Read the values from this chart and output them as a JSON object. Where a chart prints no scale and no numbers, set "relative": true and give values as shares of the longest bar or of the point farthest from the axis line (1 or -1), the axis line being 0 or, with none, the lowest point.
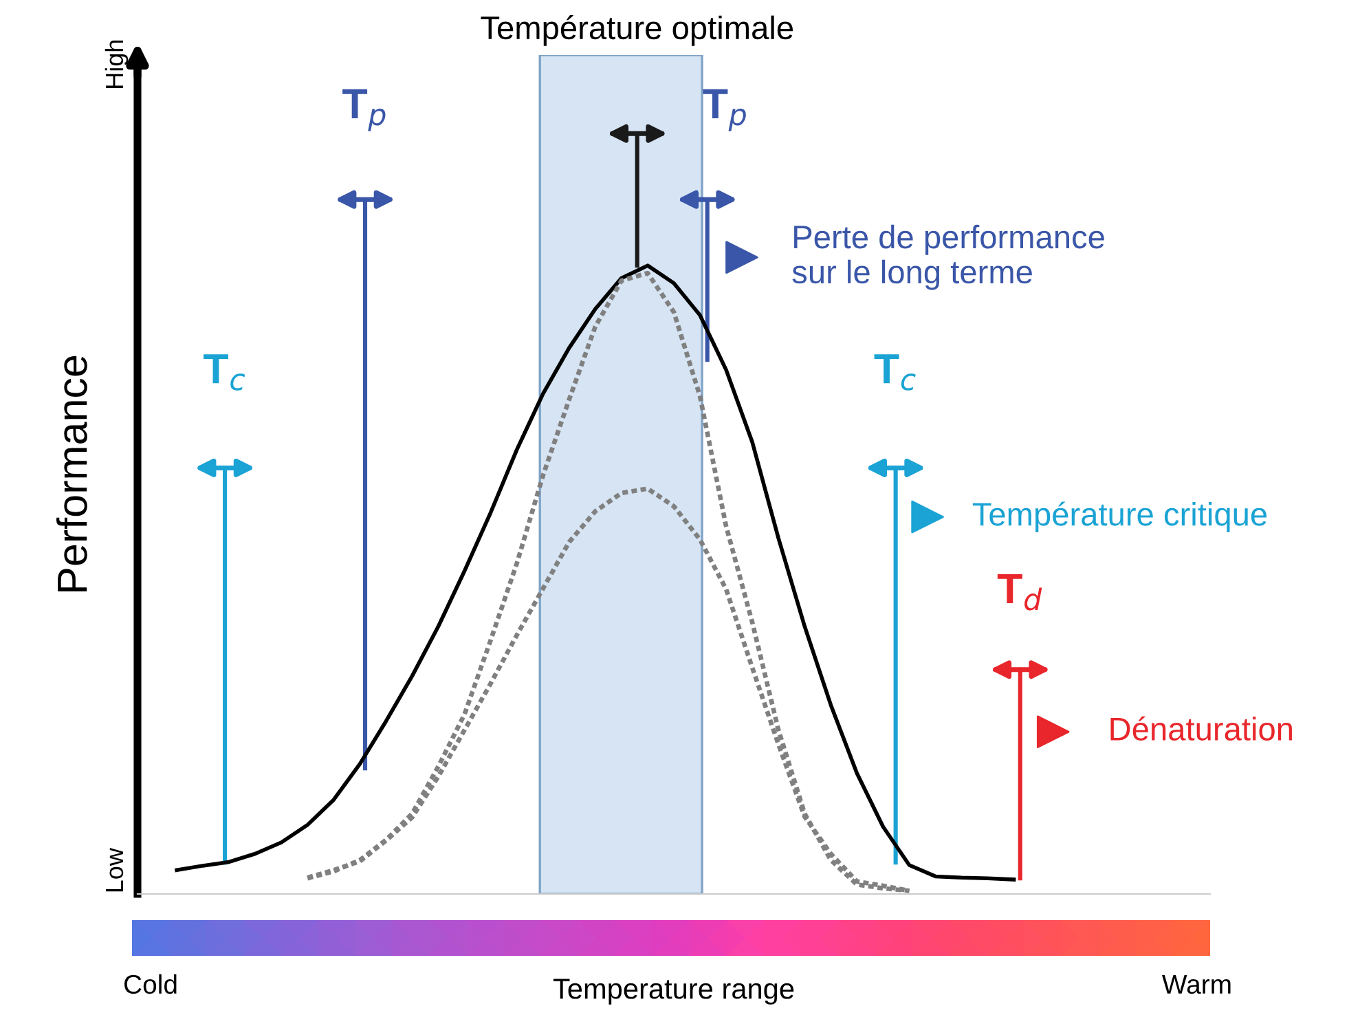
{
  "chart_data": {
    "type": "line",
    "relative": true,
    "xlabel": "Temperature range",
    "ylabel": "Performance",
    "categories": [
      "Cold",
      null,
      null,
      null,
      null,
      null,
      null,
      null,
      null,
      null,
      null,
      null,
      null,
      null,
      null,
      null,
      null,
      null,
      null,
      null,
      null,
      null,
      null,
      null,
      null,
      null,
      null,
      null,
      null,
      null,
      null,
      null,
      null,
      null,
      null,
      null,
      null,
      null,
      null,
      null,
      "Warm"
    ],
    "grid": false,
    "legend": false,
    "marker": "none",
    "series": [
      {
        "color": "#000000",
        "line_style": "solid",
        "values": [
          null,
          0.038,
          0.045,
          0.051,
          0.064,
          0.082,
          0.11,
          0.15,
          0.207,
          0.275,
          0.347,
          0.426,
          0.514,
          0.607,
          0.707,
          0.796,
          0.869,
          0.931,
          0.98,
          1.0,
          0.972,
          0.921,
          0.834,
          0.719,
          0.566,
          0.426,
          0.301,
          0.192,
          0.107,
          0.046,
          0.028,
          0.026,
          0.025,
          0.023,
          null,
          null,
          null,
          null,
          null,
          null,
          null
        ]
      },
      {
        "color": "#808080",
        "line_style": "dotted",
        "values": [
          null,
          null,
          null,
          null,
          null,
          null,
          0.025,
          0.036,
          0.054,
          0.086,
          0.128,
          0.203,
          0.286,
          0.404,
          0.526,
          0.666,
          0.787,
          0.903,
          0.976,
          0.988,
          0.926,
          0.792,
          0.585,
          0.432,
          0.261,
          0.128,
          0.054,
          0.015,
          0.009,
          0.005,
          null,
          null,
          null,
          null,
          null,
          null,
          null,
          null,
          null,
          null,
          null
        ]
      },
      {
        "color": "#808080",
        "line_style": "dotted",
        "values": [
          null,
          null,
          null,
          null,
          null,
          null,
          0.026,
          0.038,
          0.052,
          0.085,
          0.122,
          0.187,
          0.261,
          0.335,
          0.412,
          0.486,
          0.56,
          0.609,
          0.638,
          0.645,
          0.617,
          0.564,
          0.485,
          0.36,
          0.238,
          0.123,
          0.064,
          0.02,
          0.013,
          0.005,
          null,
          null,
          null,
          null,
          null,
          null,
          null,
          null,
          null,
          null,
          null
        ]
      }
    ],
    "annotations": [
      "T$_{c}$",
      "T$_{p}$",
      "Température optimale",
      "T$_{p}$",
      "T$_{c}$",
      "T$_{d}$",
      "Perte de performance\nsur le long terme",
      "Température critique",
      "Dénaturation",
      "Low",
      "High"
    ]
  }
}
